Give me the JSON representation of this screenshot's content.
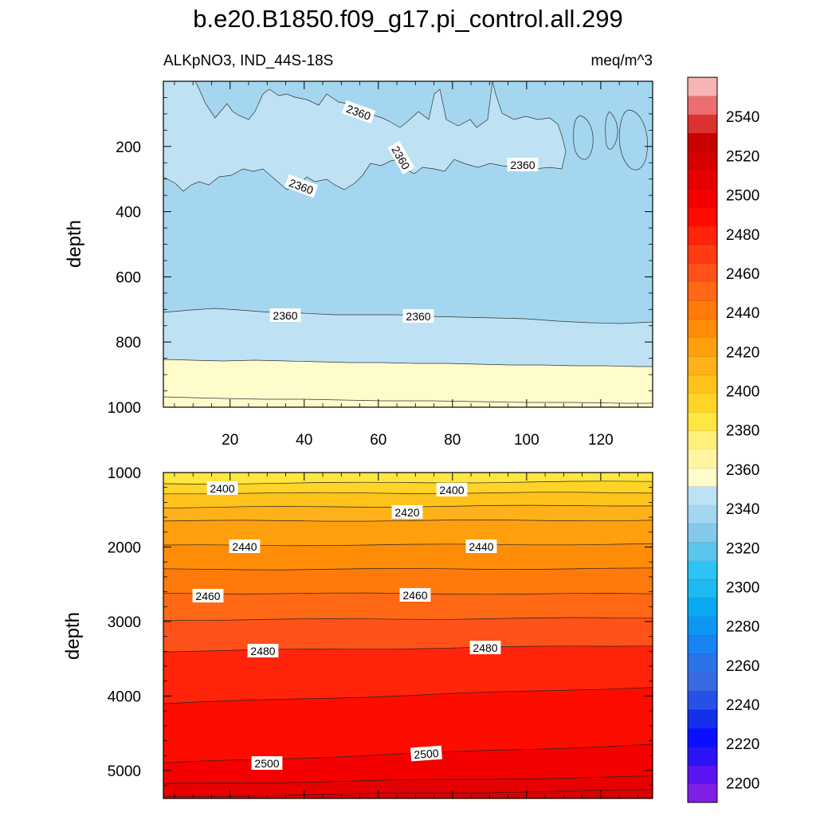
{
  "chart_data": [
    {
      "type": "contour",
      "title": "b.e20.B1850.f09_g17.pi_control.all.299",
      "left_subtitle": "ALKpNO3, IND_44S-18S",
      "right_subtitle": "meq/m^3",
      "ylabel": "depth",
      "xlim": [
        2,
        134
      ],
      "ylim": [
        0,
        1000
      ],
      "y_inverted": true,
      "xticks": [
        "20",
        "40",
        "60",
        "80",
        "100",
        "120"
      ],
      "yticks": [
        "200",
        "400",
        "600",
        "800",
        "1000"
      ],
      "contour_labels": [
        "2360",
        "2360",
        "2360",
        "2360",
        "2360",
        "2360"
      ],
      "level_bands": [
        {
          "range": "2350-2360",
          "y_top_left": 0,
          "y_top_right": 0
        },
        {
          "range": "2360-2370",
          "y_top_left": 300,
          "y_top_right": 300
        },
        {
          "range": "2350-2360",
          "y_top_left": 700,
          "y_top_right": 700
        },
        {
          "range": "2360-2370",
          "y_top_left": 845,
          "y_top_right": 870
        },
        {
          "range": "2380-2385",
          "y_top_left": 965,
          "y_top_right": 985
        }
      ]
    },
    {
      "type": "contour",
      "ylabel": "depth",
      "xlim": [
        2,
        134
      ],
      "ylim": [
        1000,
        5375
      ],
      "y_inverted": true,
      "xticks": [],
      "yticks": [
        "1000",
        "2000",
        "3000",
        "4000",
        "5000"
      ],
      "contour_labels": [
        "2400",
        "2400",
        "2420",
        "2440",
        "2440",
        "2460",
        "2460",
        "2480",
        "2480",
        "2500",
        "2500"
      ],
      "contour_lines": [
        {
          "level": 2390,
          "depth_left": 1150,
          "depth_right": 1120
        },
        {
          "level": 2400,
          "depth_left": 1280,
          "depth_right": 1270
        },
        {
          "level": 2410,
          "depth_left": 1470,
          "depth_right": 1440
        },
        {
          "level": 2420,
          "depth_left": 1650,
          "depth_right": 1640
        },
        {
          "level": 2430,
          "depth_left": 1980,
          "depth_right": 1960
        },
        {
          "level": 2440,
          "depth_left": 2300,
          "depth_right": 2290
        },
        {
          "level": 2450,
          "depth_left": 2620,
          "depth_right": 2630
        },
        {
          "level": 2460,
          "depth_left": 2980,
          "depth_right": 2950
        },
        {
          "level": 2470,
          "depth_left": 3400,
          "depth_right": 3320
        },
        {
          "level": 2480,
          "depth_left": 4100,
          "depth_right": 3880
        },
        {
          "level": 2490,
          "depth_left": 4900,
          "depth_right": 4650
        },
        {
          "level": 2500,
          "depth_left": 5180,
          "depth_right": 5080
        },
        {
          "level": 2510,
          "depth_left": 5350,
          "depth_right": 5260
        }
      ]
    }
  ],
  "colorbar": {
    "tick_labels": [
      "2200",
      "2220",
      "2240",
      "2260",
      "2280",
      "2300",
      "2320",
      "2340",
      "2360",
      "2380",
      "2400",
      "2420",
      "2440",
      "2460",
      "2480",
      "2500",
      "2520",
      "2540"
    ],
    "boundaries": [
      2190,
      2560
    ],
    "colors": [
      "#7f1fe6",
      "#5b13f2",
      "#2b14f5",
      "#0a10ff",
      "#1530ea",
      "#2950e6",
      "#3a6ae2",
      "#2a74e8",
      "#1983f4",
      "#0e96f5",
      "#0aa9f3",
      "#1dbaf2",
      "#2dc4f4",
      "#5bc5ee",
      "#85c9ea",
      "#a3d6f0",
      "#bde2f4",
      "#fffccc",
      "#fff5a0",
      "#fff07a",
      "#ffe640",
      "#ffd426",
      "#ffc21a",
      "#ffb11a",
      "#ff9f0e",
      "#ff8c06",
      "#ff7a0a",
      "#ff6814",
      "#ff521a",
      "#ff3b14",
      "#ff240a",
      "#ff0c00",
      "#f50000",
      "#e60000",
      "#d60000",
      "#c80000",
      "#dc3131",
      "#ec6e6e",
      "#f8b4b4"
    ]
  }
}
